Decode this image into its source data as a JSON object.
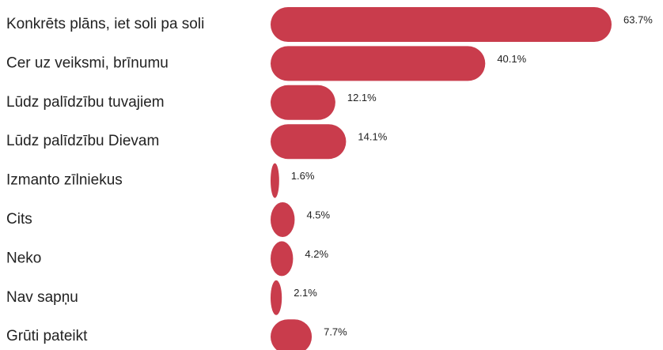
{
  "chart_data": {
    "type": "bar",
    "orientation": "horizontal",
    "categories": [
      "Konkrēts plāns, iet soli pa soli",
      "Cer uz veiksmi, brīnumu",
      "Lūdz palīdzību tuvajiem",
      "Lūdz palīdzību Dievam",
      "Izmanto zīlniekus",
      "Cits",
      "Neko",
      "Nav sapņu",
      "Grūti pateikt"
    ],
    "values": [
      63.7,
      40.1,
      12.1,
      14.1,
      1.6,
      4.5,
      4.2,
      2.1,
      7.7
    ],
    "value_labels": [
      "63.7%",
      "40.1%",
      "12.1%",
      "14.1%",
      "1.6%",
      "4.5%",
      "4.2%",
      "2.1%",
      "7.7%"
    ],
    "color": "#c93c4c"
  }
}
